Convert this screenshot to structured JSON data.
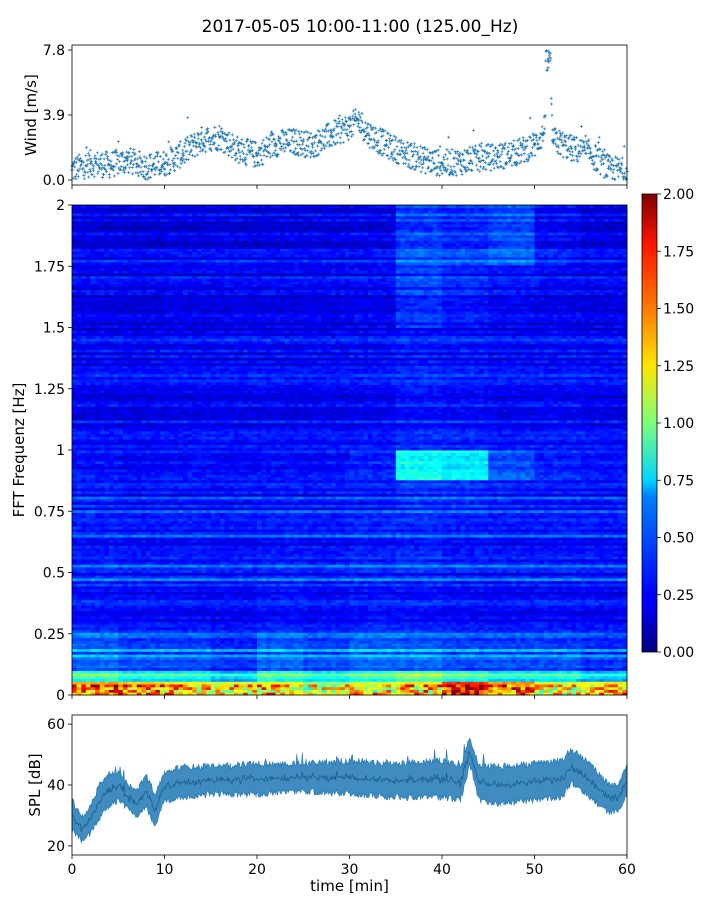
{
  "figure": {
    "title": "2017-05-05 10:00-11:00 (125.00_Hz)"
  },
  "colors": {
    "wind_marker": "#1f77b4",
    "spl_line": "#1f77b4",
    "colormap": "jet"
  },
  "chart_data": [
    {
      "type": "scatter",
      "panel": "wind",
      "title": "",
      "xlabel": "",
      "ylabel": "Wind [m/s]",
      "xlim": [
        0,
        60
      ],
      "ylim": [
        -0.3,
        8.1
      ],
      "yticks": [
        0.0,
        3.9,
        7.8
      ],
      "ytick_labels": [
        "0.0",
        "3.9",
        "7.8"
      ],
      "xticks": [
        0,
        10,
        20,
        30,
        40,
        50,
        60
      ],
      "grid": false,
      "series": [
        {
          "marker": "+",
          "x": [
            0,
            2,
            4,
            6,
            8,
            10,
            12,
            14,
            16,
            18,
            20,
            22,
            24,
            26,
            28,
            30,
            31,
            32,
            34,
            36,
            38,
            40,
            42,
            44,
            46,
            48,
            50,
            51,
            51.5,
            52,
            54,
            56,
            58,
            60
          ],
          "y": [
            0.6,
            1.0,
            0.9,
            1.2,
            0.8,
            1.0,
            1.6,
            2.4,
            2.6,
            1.8,
            1.5,
            2.2,
            2.3,
            2.1,
            2.7,
            3.2,
            3.6,
            2.8,
            2.1,
            1.6,
            1.2,
            1.0,
            1.1,
            1.3,
            1.4,
            1.6,
            2.1,
            2.8,
            7.1,
            2.4,
            1.9,
            1.6,
            0.7,
            0.5
          ]
        }
      ]
    },
    {
      "type": "heatmap",
      "panel": "spectrogram",
      "title": "",
      "xlabel": "",
      "ylabel": "FFT Frequenz [Hz]",
      "xlim": [
        0,
        60
      ],
      "ylim": [
        0,
        2
      ],
      "yticks": [
        0,
        0.25,
        0.5,
        0.75,
        1,
        1.25,
        1.5,
        1.75,
        2
      ],
      "ytick_labels": [
        "0",
        "0.25",
        "0.5",
        "0.75",
        "1",
        "1.25",
        "1.5",
        "1.75",
        "2"
      ],
      "xticks": [
        0,
        10,
        20,
        30,
        40,
        50,
        60
      ],
      "colormap": "jet",
      "clim": [
        0.0,
        2.0
      ],
      "colorbar_ticks": [
        0.0,
        0.25,
        0.5,
        0.75,
        1.0,
        1.25,
        1.5,
        1.75,
        2.0
      ],
      "colorbar_labels": [
        "0.00",
        "0.25",
        "0.50",
        "0.75",
        "1.00",
        "1.25",
        "1.50",
        "1.75",
        "2.00"
      ],
      "time_bins": [
        0,
        5,
        10,
        15,
        20,
        25,
        30,
        35,
        40,
        45,
        50,
        55,
        60
      ],
      "freq_bins": [
        0.02,
        0.05,
        0.1,
        0.25,
        0.5,
        0.75,
        0.88,
        1.0,
        1.25,
        1.5,
        1.75,
        2.0
      ],
      "values_by_freq_band": [
        [
          1.4,
          1.3,
          1.2,
          1.1,
          1.2,
          1.0,
          1.1,
          1.2,
          1.6,
          1.4,
          1.1,
          1.2
        ],
        [
          0.8,
          0.7,
          0.7,
          0.6,
          0.8,
          0.7,
          0.8,
          0.9,
          0.8,
          0.7,
          0.7,
          0.6
        ],
        [
          0.45,
          0.4,
          0.4,
          0.35,
          0.45,
          0.4,
          0.45,
          0.45,
          0.4,
          0.4,
          0.4,
          0.35
        ],
        [
          0.3,
          0.28,
          0.28,
          0.27,
          0.3,
          0.28,
          0.3,
          0.3,
          0.28,
          0.27,
          0.28,
          0.27
        ],
        [
          0.27,
          0.26,
          0.26,
          0.25,
          0.27,
          0.26,
          0.28,
          0.3,
          0.27,
          0.26,
          0.26,
          0.25
        ],
        [
          0.28,
          0.26,
          0.26,
          0.26,
          0.27,
          0.26,
          0.27,
          0.33,
          0.32,
          0.28,
          0.27,
          0.26
        ],
        [
          0.25,
          0.24,
          0.25,
          0.24,
          0.25,
          0.25,
          0.3,
          0.75,
          0.7,
          0.4,
          0.3,
          0.26
        ],
        [
          0.24,
          0.23,
          0.24,
          0.24,
          0.24,
          0.24,
          0.25,
          0.3,
          0.28,
          0.25,
          0.26,
          0.24
        ],
        [
          0.23,
          0.22,
          0.23,
          0.23,
          0.23,
          0.23,
          0.24,
          0.27,
          0.26,
          0.24,
          0.24,
          0.23
        ],
        [
          0.22,
          0.21,
          0.22,
          0.22,
          0.22,
          0.22,
          0.23,
          0.36,
          0.3,
          0.25,
          0.23,
          0.22
        ],
        [
          0.22,
          0.21,
          0.22,
          0.22,
          0.22,
          0.22,
          0.23,
          0.4,
          0.36,
          0.42,
          0.27,
          0.22
        ]
      ]
    },
    {
      "type": "area",
      "panel": "spl",
      "title": "",
      "xlabel": "time [min]",
      "ylabel": "SPL [dB]",
      "xlim": [
        0,
        60
      ],
      "ylim": [
        17,
        63
      ],
      "yticks": [
        20,
        40,
        60
      ],
      "ytick_labels": [
        "20",
        "40",
        "60"
      ],
      "xticks": [
        0,
        10,
        20,
        30,
        40,
        50,
        60
      ],
      "xtick_labels": [
        "0",
        "10",
        "20",
        "30",
        "40",
        "50",
        "60"
      ],
      "grid": false,
      "x": [
        0,
        1,
        2,
        3,
        4,
        5,
        6,
        7,
        8,
        9,
        10,
        12,
        15,
        20,
        25,
        30,
        35,
        40,
        42,
        43,
        44,
        46,
        50,
        53,
        54,
        56,
        58,
        59,
        60
      ],
      "y_low": [
        25,
        22,
        24,
        29,
        33,
        35,
        32,
        30,
        33,
        26,
        35,
        36,
        37,
        37,
        38,
        37,
        36,
        36,
        35,
        47,
        35,
        34,
        35,
        36,
        41,
        36,
        31,
        32,
        36
      ],
      "y_high": [
        35,
        30,
        33,
        40,
        44,
        44,
        40,
        38,
        43,
        37,
        44,
        46,
        46,
        47,
        47,
        48,
        47,
        48,
        46,
        56,
        46,
        46,
        47,
        48,
        52,
        47,
        40,
        40,
        47
      ]
    }
  ]
}
